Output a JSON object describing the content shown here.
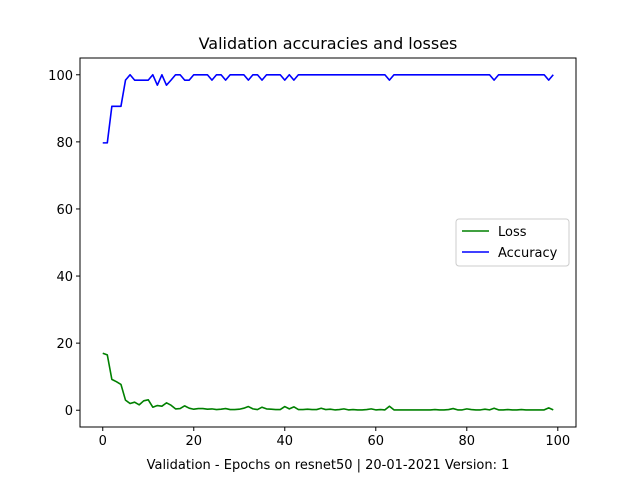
{
  "chart_data": {
    "type": "line",
    "title": "Validation accuracies and losses",
    "xlabel": "Validation - Epochs on resnet50 | 20-01-2021 Version: 1",
    "ylabel": "",
    "xlim": [
      -5,
      104
    ],
    "ylim": [
      -5,
      105
    ],
    "x_ticks": [
      0,
      20,
      40,
      60,
      80,
      100
    ],
    "y_ticks": [
      0,
      20,
      40,
      60,
      80,
      100
    ],
    "grid": false,
    "legend_position": "center-right",
    "x": [
      0,
      1,
      2,
      3,
      4,
      5,
      6,
      7,
      8,
      9,
      10,
      11,
      12,
      13,
      14,
      15,
      16,
      17,
      18,
      19,
      20,
      21,
      22,
      23,
      24,
      25,
      26,
      27,
      28,
      29,
      30,
      31,
      32,
      33,
      34,
      35,
      36,
      37,
      38,
      39,
      40,
      41,
      42,
      43,
      44,
      45,
      46,
      47,
      48,
      49,
      50,
      51,
      52,
      53,
      54,
      55,
      56,
      57,
      58,
      59,
      60,
      61,
      62,
      63,
      64,
      65,
      66,
      67,
      68,
      69,
      70,
      71,
      72,
      73,
      74,
      75,
      76,
      77,
      78,
      79,
      80,
      81,
      82,
      83,
      84,
      85,
      86,
      87,
      88,
      89,
      90,
      91,
      92,
      93,
      94,
      95,
      96,
      97,
      98,
      99
    ],
    "series": [
      {
        "name": "Loss",
        "color": "#008000",
        "values": [
          17.0,
          16.5,
          9.2,
          8.5,
          7.7,
          3.0,
          2.0,
          2.4,
          1.6,
          2.8,
          3.1,
          0.9,
          1.4,
          1.2,
          2.2,
          1.5,
          0.4,
          0.5,
          1.3,
          0.6,
          0.3,
          0.5,
          0.5,
          0.3,
          0.4,
          0.2,
          0.3,
          0.5,
          0.2,
          0.2,
          0.3,
          0.6,
          1.1,
          0.4,
          0.2,
          0.9,
          0.4,
          0.3,
          0.2,
          0.2,
          1.1,
          0.4,
          1.0,
          0.2,
          0.2,
          0.3,
          0.2,
          0.2,
          0.6,
          0.2,
          0.3,
          0.1,
          0.2,
          0.4,
          0.1,
          0.2,
          0.1,
          0.1,
          0.2,
          0.4,
          0.1,
          0.2,
          0.1,
          1.2,
          0.1,
          0.1,
          0.1,
          0.1,
          0.1,
          0.1,
          0.1,
          0.1,
          0.1,
          0.2,
          0.1,
          0.1,
          0.2,
          0.5,
          0.1,
          0.1,
          0.4,
          0.2,
          0.1,
          0.1,
          0.3,
          0.1,
          0.6,
          0.1,
          0.1,
          0.2,
          0.1,
          0.1,
          0.2,
          0.1,
          0.1,
          0.1,
          0.1,
          0.1,
          0.7,
          0.1
        ]
      },
      {
        "name": "Accuracy",
        "color": "#0000ff",
        "values": [
          79.7,
          79.7,
          90.6,
          90.6,
          90.6,
          98.4,
          100,
          98.4,
          98.4,
          98.4,
          98.4,
          100,
          96.9,
          100,
          96.9,
          98.4,
          100,
          100,
          98.4,
          98.4,
          100,
          100,
          100,
          100,
          98.4,
          100,
          100,
          98.4,
          100,
          100,
          100,
          100,
          98.4,
          100,
          100,
          98.4,
          100,
          100,
          100,
          100,
          98.4,
          100,
          98.4,
          100,
          100,
          100,
          100,
          100,
          100,
          100,
          100,
          100,
          100,
          100,
          100,
          100,
          100,
          100,
          100,
          100,
          100,
          100,
          100,
          98.4,
          100,
          100,
          100,
          100,
          100,
          100,
          100,
          100,
          100,
          100,
          100,
          100,
          100,
          100,
          100,
          100,
          100,
          100,
          100,
          100,
          100,
          100,
          98.4,
          100,
          100,
          100,
          100,
          100,
          100,
          100,
          100,
          100,
          100,
          100,
          98.4,
          100
        ]
      }
    ]
  }
}
